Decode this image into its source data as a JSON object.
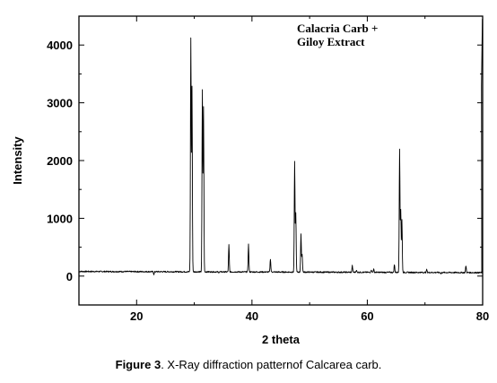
{
  "chart_data": {
    "type": "line",
    "xlabel": "2 theta",
    "ylabel": "Intensity",
    "xlim": [
      10,
      80
    ],
    "ylim": [
      -500,
      4500
    ],
    "x_ticks": [
      20,
      40,
      60,
      80
    ],
    "y_ticks": [
      0,
      1000,
      2000,
      3000,
      4000
    ],
    "legend": [
      "Calacria Carb +",
      "Giloy Extract"
    ],
    "grid": false,
    "baseline": {
      "start": 80,
      "end": 60
    },
    "peaks": [
      {
        "x": 18.0,
        "y": 80
      },
      {
        "x": 23.0,
        "y": 30
      },
      {
        "x": 29.4,
        "y": 4100
      },
      {
        "x": 29.6,
        "y": 3270
      },
      {
        "x": 31.4,
        "y": 3200
      },
      {
        "x": 31.6,
        "y": 2920
      },
      {
        "x": 34.2,
        "y": 60
      },
      {
        "x": 36.0,
        "y": 540
      },
      {
        "x": 39.4,
        "y": 550
      },
      {
        "x": 43.2,
        "y": 300
      },
      {
        "x": 47.4,
        "y": 1980
      },
      {
        "x": 47.6,
        "y": 1080
      },
      {
        "x": 48.5,
        "y": 720
      },
      {
        "x": 48.7,
        "y": 380
      },
      {
        "x": 57.4,
        "y": 180
      },
      {
        "x": 58.1,
        "y": 100
      },
      {
        "x": 60.7,
        "y": 110
      },
      {
        "x": 61.1,
        "y": 120
      },
      {
        "x": 64.7,
        "y": 200
      },
      {
        "x": 65.6,
        "y": 2180
      },
      {
        "x": 65.8,
        "y": 1140
      },
      {
        "x": 66.0,
        "y": 970
      },
      {
        "x": 70.3,
        "y": 110
      },
      {
        "x": 72.8,
        "y": 40
      },
      {
        "x": 77.1,
        "y": 180
      },
      {
        "x": 79.8,
        "y": 3300
      },
      {
        "x": 79.95,
        "y": 4450
      }
    ]
  },
  "caption": {
    "label": "Figure 3",
    "text": ". X-Ray diffraction patternof Calcarea carb."
  }
}
